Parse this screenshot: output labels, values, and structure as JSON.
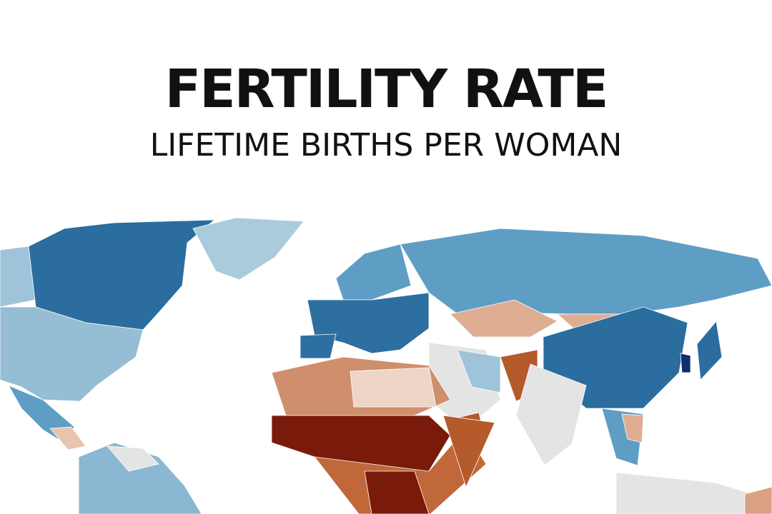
{
  "header": {
    "title": "FERTILITY RATE",
    "subtitle": "LIFETIME BIRTHS PER WOMAN"
  }
}
